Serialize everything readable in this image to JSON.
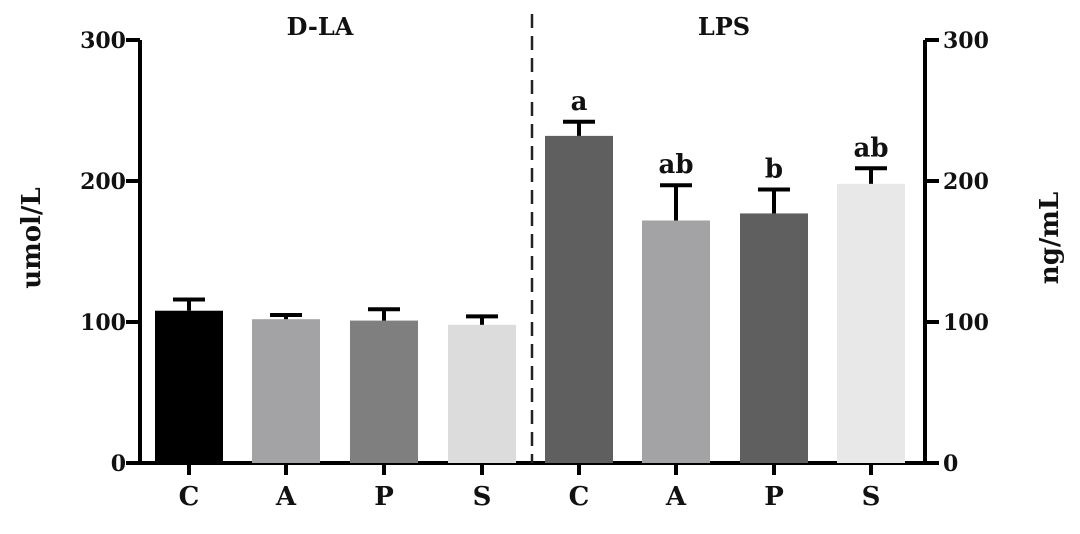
{
  "chart_data": {
    "type": "bar",
    "categories": [
      "C",
      "A",
      "P",
      "S",
      "C",
      "A",
      "P",
      "S"
    ],
    "panels": [
      {
        "title": "D-LA",
        "ylabel": "umol/L",
        "axis": "left",
        "ylim": [
          0,
          300
        ],
        "yticks": [
          "0",
          "100",
          "200",
          "300"
        ],
        "categories": [
          "C",
          "A",
          "P",
          "S"
        ],
        "values": [
          108,
          102,
          101,
          98
        ],
        "errors": [
          8,
          3,
          8,
          6
        ],
        "colors": [
          "#000000",
          "#a3a3a6",
          "#7f7f7f",
          "#dcdcdc"
        ],
        "sig_labels": [
          "",
          "",
          "",
          ""
        ]
      },
      {
        "title": "LPS",
        "ylabel": "ng/mL",
        "axis": "right",
        "ylim": [
          0,
          300
        ],
        "yticks": [
          "0",
          "100",
          "200",
          "300"
        ],
        "categories": [
          "C",
          "A",
          "P",
          "S"
        ],
        "values": [
          232,
          172,
          177,
          198
        ],
        "errors": [
          10,
          25,
          17,
          11
        ],
        "colors": [
          "#5f5f5f",
          "#a3a3a6",
          "#5f5f5f",
          "#e8e8e8"
        ],
        "sig_labels": [
          "a",
          "ab",
          "b",
          "ab"
        ]
      }
    ],
    "divider": "dashed",
    "grid": false,
    "legend": "none"
  }
}
